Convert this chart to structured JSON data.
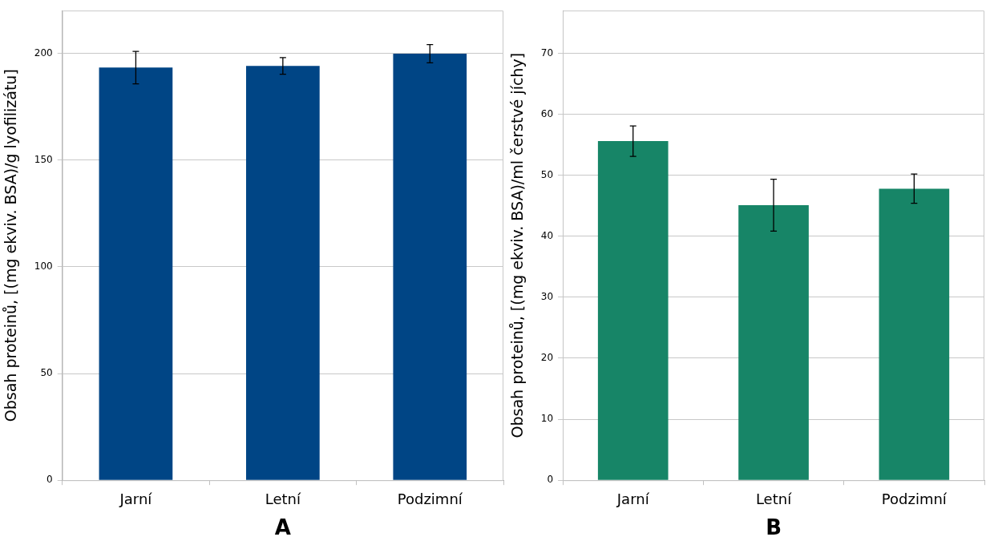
{
  "chart_data": [
    {
      "type": "bar",
      "xlabel": "A",
      "ylabel": "Obsah proteinů, [(mg ekviv. BSA)/g lyofilizátu]",
      "categories": [
        "Jarní",
        "Letní",
        "Podzimní"
      ],
      "values": [
        193.3,
        194.1,
        199.8
      ],
      "errors": [
        7.6,
        3.9,
        4.3
      ],
      "color": "#004585",
      "ylim": [
        0,
        220
      ],
      "yticks": [
        0,
        50,
        100,
        150,
        200
      ],
      "grid": "y",
      "legend": false
    },
    {
      "type": "bar",
      "xlabel": "B",
      "ylabel": "Obsah proteinů, [(mg ekviv. BSA)/ml čerstvé jíchy]",
      "categories": [
        "Jarní",
        "Letní",
        "Podzimní"
      ],
      "values": [
        55.6,
        45.1,
        47.8
      ],
      "errors": [
        2.5,
        4.25,
        2.4
      ],
      "color": "#178567",
      "ylim": [
        0,
        77
      ],
      "yticks": [
        0,
        10,
        20,
        30,
        40,
        50,
        60,
        70
      ],
      "grid": "y",
      "legend": false
    }
  ]
}
